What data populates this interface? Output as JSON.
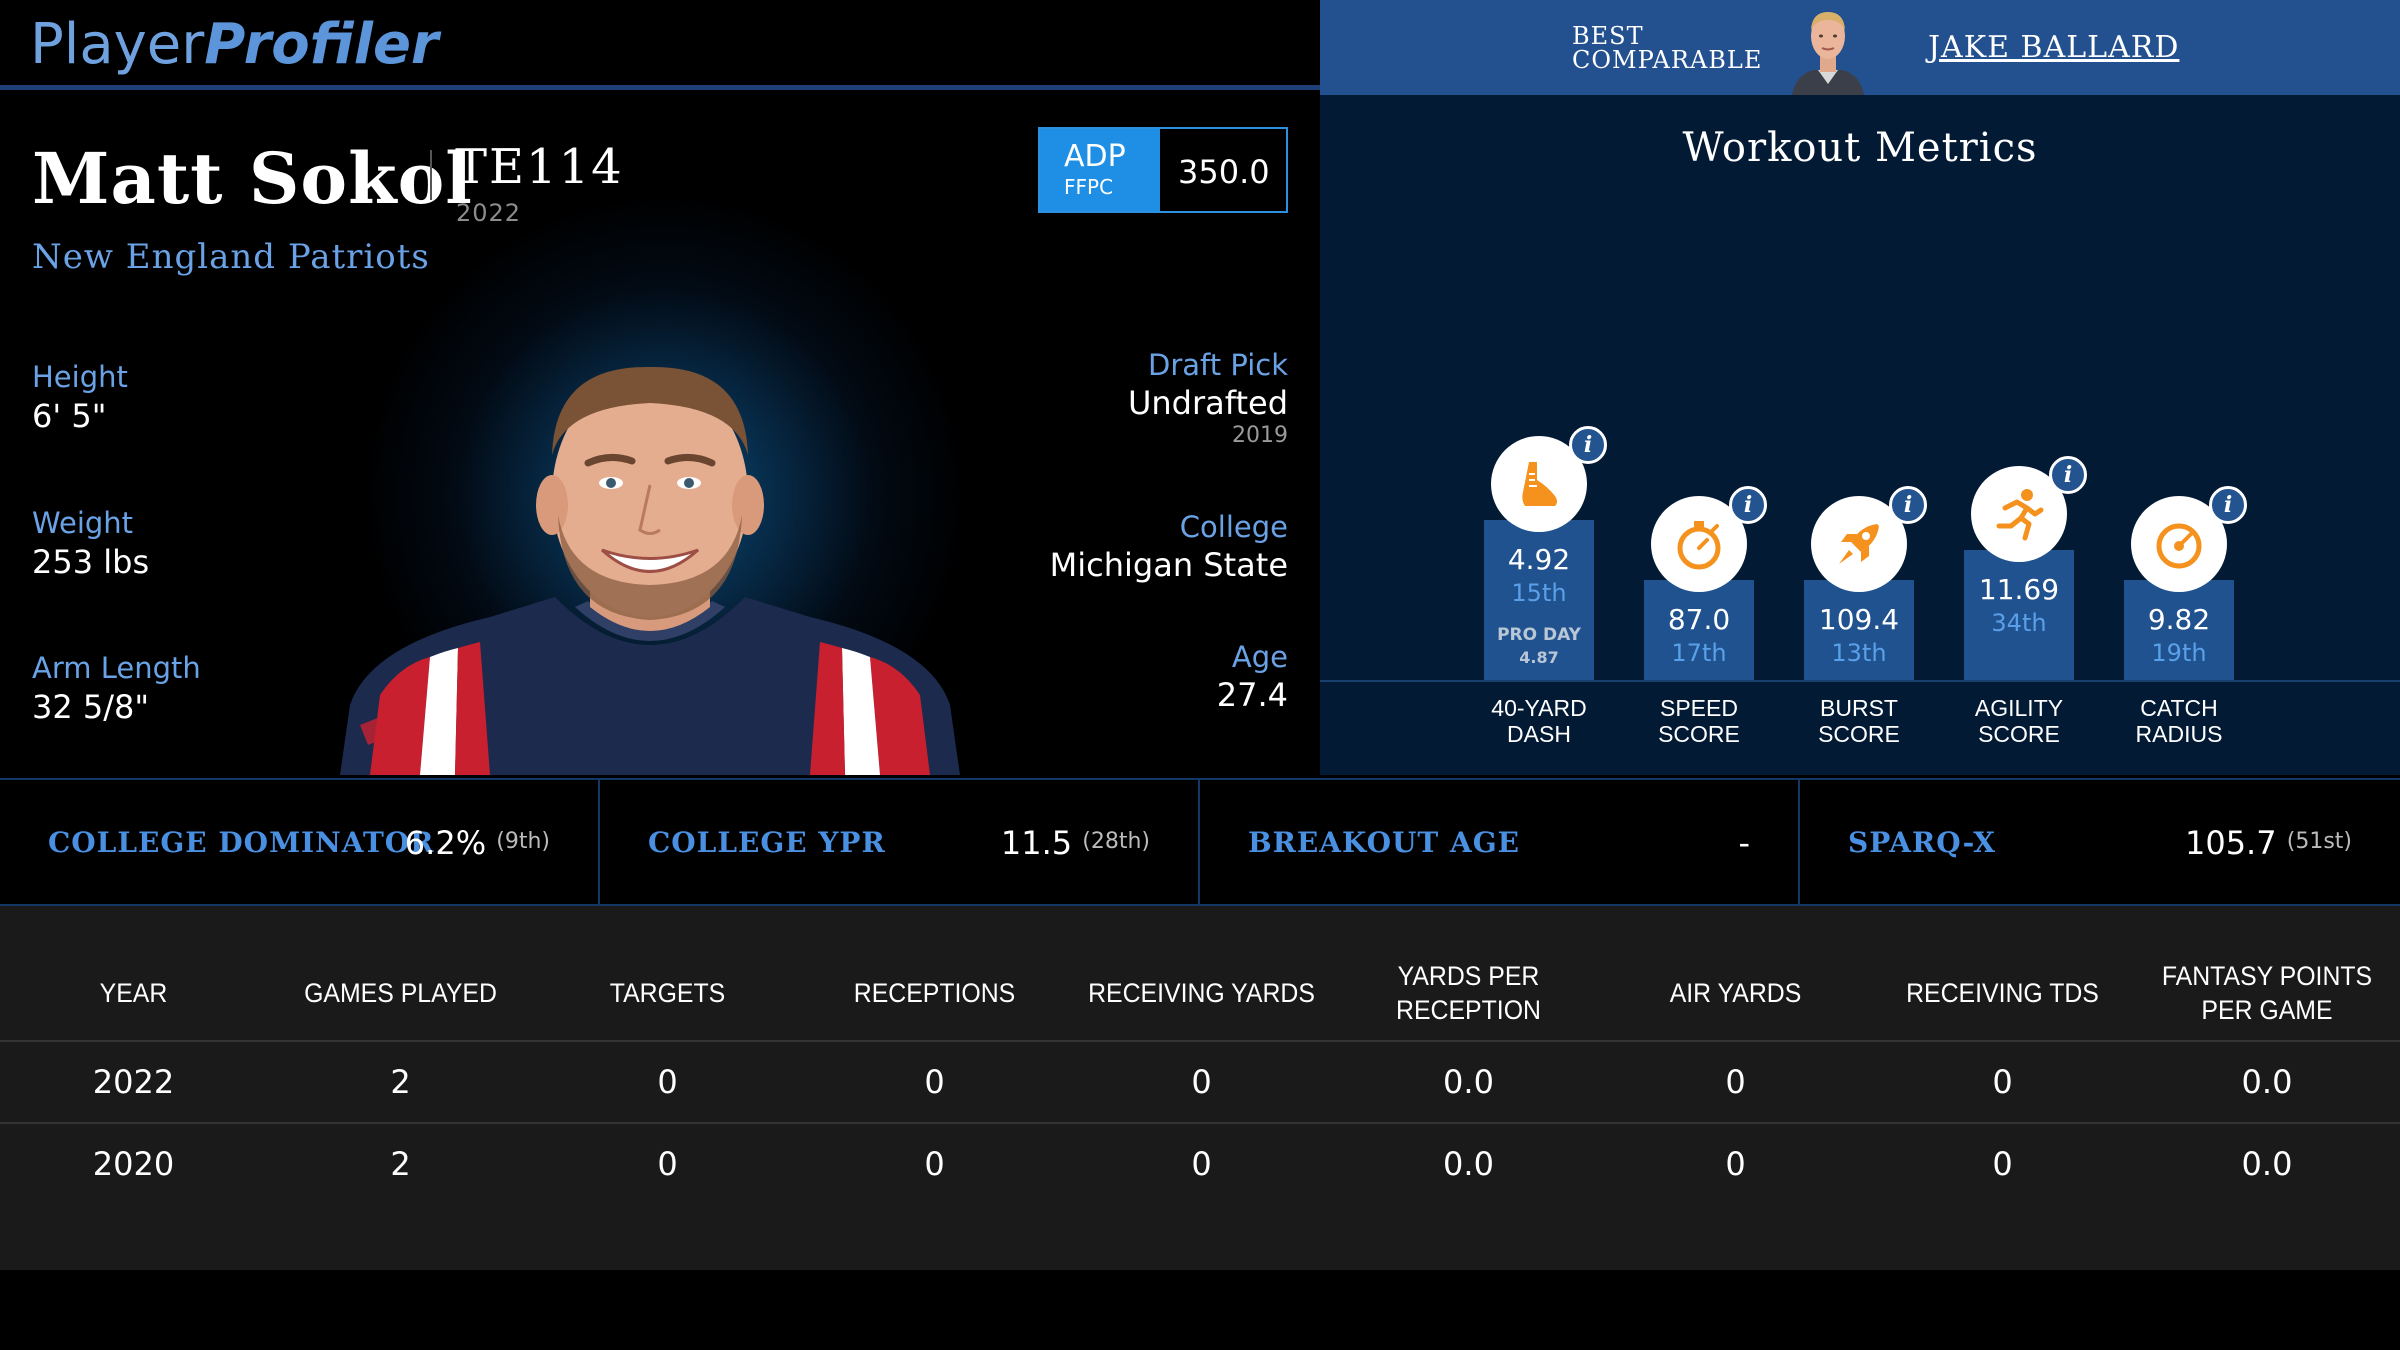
{
  "header": {
    "logo_part1": "Player",
    "logo_part2": "Profiler",
    "best_comparable_label_line1": "BEST",
    "best_comparable_label_line2": "COMPARABLE",
    "best_comparable_name": "JAKE BALLARD"
  },
  "player": {
    "name": "Matt Sokol",
    "position_rank": "TE114",
    "rank_year": "2022",
    "team": "New England Patriots",
    "adp": {
      "label": "ADP",
      "source": "FFPC",
      "value": "350.0"
    },
    "height": {
      "label": "Height",
      "value": "6' 5\""
    },
    "weight": {
      "label": "Weight",
      "value": "253 lbs"
    },
    "arm_length": {
      "label": "Arm Length",
      "value": "32 5/8\""
    },
    "draft_pick": {
      "label": "Draft Pick",
      "value": "Undrafted",
      "year": "2019"
    },
    "college": {
      "label": "College",
      "value": "Michigan State"
    },
    "age": {
      "label": "Age",
      "value": "27.4"
    }
  },
  "workout": {
    "title": "Workout Metrics",
    "metrics": [
      {
        "label_line1": "40-YARD",
        "label_line2": "DASH",
        "value": "4.92",
        "rank": "15th",
        "pro_day_label": "PRO DAY",
        "pro_day_value": "4.87",
        "icon": "shoe-icon",
        "percentile": 15
      },
      {
        "label_line1": "SPEED",
        "label_line2": "SCORE",
        "value": "87.0",
        "rank": "17th",
        "icon": "stopwatch-icon",
        "percentile": 17
      },
      {
        "label_line1": "BURST",
        "label_line2": "SCORE",
        "value": "109.4",
        "rank": "13th",
        "icon": "rocket-icon",
        "percentile": 13
      },
      {
        "label_line1": "AGILITY",
        "label_line2": "SCORE",
        "value": "11.69",
        "rank": "34th",
        "icon": "runner-icon",
        "percentile": 34
      },
      {
        "label_line1": "CATCH",
        "label_line2": "RADIUS",
        "value": "9.82",
        "rank": "19th",
        "icon": "gauge-icon",
        "percentile": 19
      }
    ],
    "info_glyph": "i",
    "accent_color": "#f5921e"
  },
  "summary": [
    {
      "label": "COLLEGE DOMINATOR",
      "value": "6.2%",
      "rank": "(9th)"
    },
    {
      "label": "COLLEGE YPR",
      "value": "11.5",
      "rank": "(28th)"
    },
    {
      "label": "BREAKOUT AGE",
      "value": "-",
      "rank": ""
    },
    {
      "label": "SPARQ-X",
      "value": "105.7",
      "rank": "(51st)"
    }
  ],
  "table": {
    "headers": [
      "YEAR",
      "GAMES PLAYED",
      "TARGETS",
      "RECEPTIONS",
      "RECEIVING YARDS",
      "YARDS PER RECEPTION",
      "AIR YARDS",
      "RECEIVING TDS",
      "FANTASY POINTS PER GAME"
    ],
    "rows": [
      [
        "2022",
        "2",
        "0",
        "0",
        "0",
        "0.0",
        "0",
        "0",
        "0.0"
      ],
      [
        "2020",
        "2",
        "0",
        "0",
        "0",
        "0.0",
        "0",
        "0",
        "0.0"
      ]
    ]
  }
}
